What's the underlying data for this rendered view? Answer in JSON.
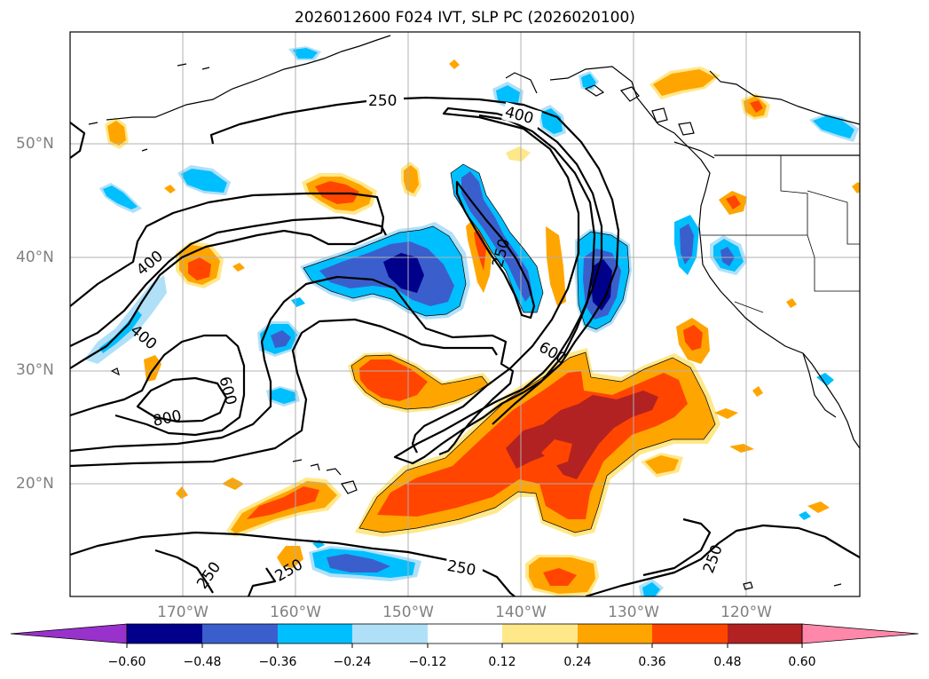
{
  "title": "2026012600 F024 IVT, SLP PC (2026020100)",
  "map": {
    "lat_labels": [
      "50°N",
      "40°N",
      "30°N",
      "20°N"
    ],
    "lon_labels": [
      "170°W",
      "160°W",
      "150°W",
      "140°W",
      "130°W",
      "120°W"
    ],
    "contour_labels": [
      "250",
      "400",
      "400",
      "400",
      "250",
      "600",
      "600",
      "800",
      "250",
      "250",
      "250",
      "250"
    ],
    "grid": true
  },
  "colorbar": {
    "ticks": [
      "−0.60",
      "−0.48",
      "−0.36",
      "−0.24",
      "−0.12",
      "0.12",
      "0.24",
      "0.36",
      "0.48",
      "0.60"
    ],
    "colors": [
      "#9932cc",
      "#00008b",
      "#3a5fcd",
      "#00bfff",
      "#b0e0f8",
      "#ffffff",
      "#ffe88a",
      "#ffa500",
      "#ff4500",
      "#b22222",
      "#ff88aa"
    ],
    "extend": "both"
  }
}
